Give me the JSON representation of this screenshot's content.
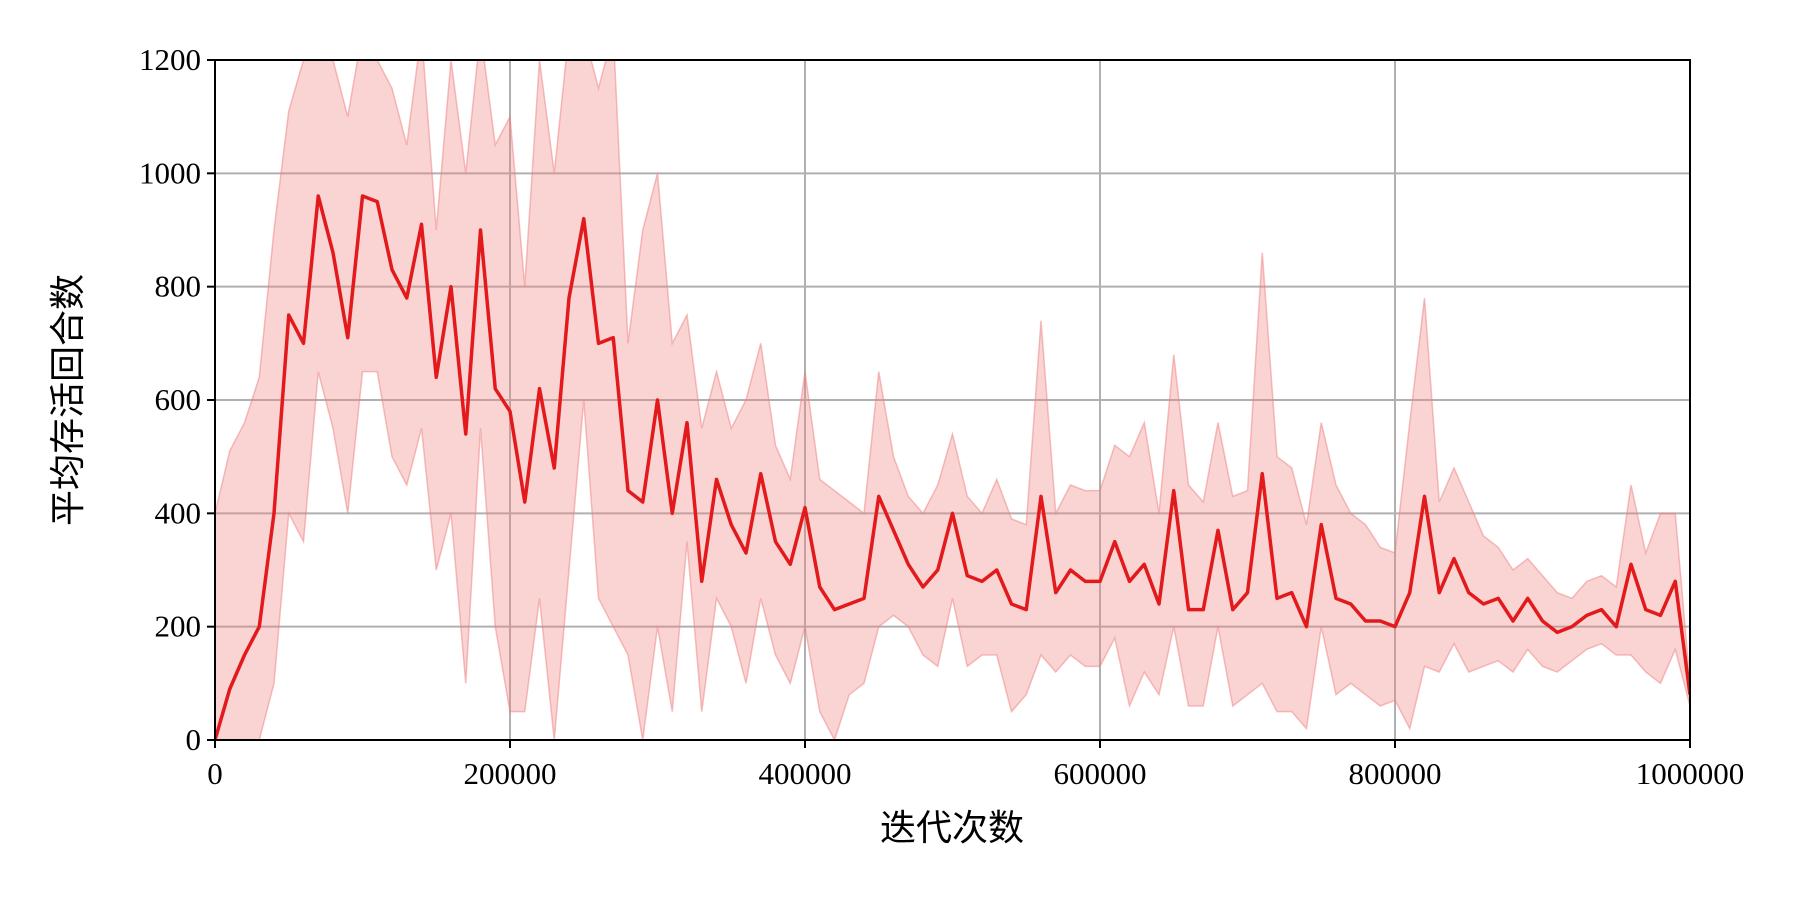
{
  "chart_data": {
    "type": "line",
    "xlabel": "迭代次数",
    "ylabel": "平均存活回合数",
    "xlim": [
      0,
      1000000
    ],
    "ylim": [
      0,
      1200
    ],
    "xticks": [
      0,
      200000,
      400000,
      600000,
      800000,
      1000000
    ],
    "yticks": [
      0,
      200,
      400,
      600,
      800,
      1000,
      1200
    ],
    "grid": true,
    "color": "#e31a1c",
    "band_color": "#f08080",
    "x": [
      0,
      10000,
      20000,
      30000,
      40000,
      50000,
      60000,
      70000,
      80000,
      90000,
      100000,
      110000,
      120000,
      130000,
      140000,
      150000,
      160000,
      170000,
      180000,
      190000,
      200000,
      210000,
      220000,
      230000,
      240000,
      250000,
      260000,
      270000,
      280000,
      290000,
      300000,
      310000,
      320000,
      330000,
      340000,
      350000,
      360000,
      370000,
      380000,
      390000,
      400000,
      410000,
      420000,
      430000,
      440000,
      450000,
      460000,
      470000,
      480000,
      490000,
      500000,
      510000,
      520000,
      530000,
      540000,
      550000,
      560000,
      570000,
      580000,
      590000,
      600000,
      610000,
      620000,
      630000,
      640000,
      650000,
      660000,
      670000,
      680000,
      690000,
      700000,
      710000,
      720000,
      730000,
      740000,
      750000,
      760000,
      770000,
      780000,
      790000,
      800000,
      810000,
      820000,
      830000,
      840000,
      850000,
      860000,
      870000,
      880000,
      890000,
      900000,
      910000,
      920000,
      930000,
      940000,
      950000,
      960000,
      970000,
      980000,
      990000,
      1000000
    ],
    "values": [
      0,
      90,
      150,
      200,
      400,
      750,
      700,
      960,
      860,
      710,
      960,
      950,
      830,
      780,
      910,
      640,
      800,
      540,
      900,
      620,
      580,
      420,
      620,
      480,
      780,
      920,
      700,
      710,
      440,
      420,
      600,
      400,
      560,
      280,
      460,
      380,
      330,
      470,
      350,
      310,
      410,
      270,
      230,
      240,
      250,
      430,
      370,
      310,
      270,
      300,
      400,
      290,
      280,
      300,
      240,
      230,
      430,
      260,
      300,
      280,
      280,
      350,
      280,
      310,
      240,
      440,
      230,
      230,
      370,
      230,
      260,
      470,
      250,
      260,
      200,
      380,
      250,
      240,
      210,
      210,
      200,
      260,
      430,
      260,
      320,
      260,
      240,
      250,
      210,
      250,
      210,
      190,
      200,
      220,
      230,
      200,
      310,
      230,
      220,
      280,
      80
    ],
    "upper": [
      400,
      510,
      560,
      640,
      900,
      1110,
      1200,
      1250,
      1200,
      1100,
      1250,
      1200,
      1150,
      1050,
      1250,
      900,
      1200,
      1000,
      1250,
      1050,
      1100,
      800,
      1200,
      1000,
      1250,
      1250,
      1150,
      1250,
      700,
      900,
      1000,
      700,
      750,
      550,
      650,
      550,
      600,
      700,
      520,
      460,
      650,
      460,
      440,
      420,
      400,
      650,
      500,
      430,
      400,
      450,
      540,
      430,
      400,
      460,
      390,
      380,
      740,
      400,
      450,
      440,
      440,
      520,
      500,
      560,
      400,
      680,
      450,
      420,
      560,
      430,
      440,
      860,
      500,
      480,
      380,
      560,
      450,
      400,
      380,
      340,
      330,
      560,
      780,
      420,
      480,
      420,
      360,
      340,
      300,
      320,
      290,
      260,
      250,
      280,
      290,
      270,
      450,
      330,
      400,
      400,
      100
    ],
    "lower": [
      0,
      0,
      0,
      0,
      100,
      400,
      350,
      650,
      550,
      400,
      650,
      650,
      500,
      450,
      550,
      300,
      400,
      100,
      550,
      200,
      50,
      50,
      250,
      0,
      300,
      600,
      250,
      200,
      150,
      0,
      200,
      50,
      350,
      50,
      250,
      200,
      100,
      250,
      150,
      100,
      200,
      50,
      0,
      80,
      100,
      200,
      220,
      200,
      150,
      130,
      250,
      130,
      150,
      150,
      50,
      80,
      150,
      120,
      150,
      130,
      130,
      180,
      60,
      120,
      80,
      200,
      60,
      60,
      200,
      60,
      80,
      100,
      50,
      50,
      20,
      200,
      80,
      100,
      80,
      60,
      70,
      20,
      130,
      120,
      170,
      120,
      130,
      140,
      120,
      160,
      130,
      120,
      140,
      160,
      170,
      150,
      150,
      120,
      100,
      160,
      60
    ]
  }
}
